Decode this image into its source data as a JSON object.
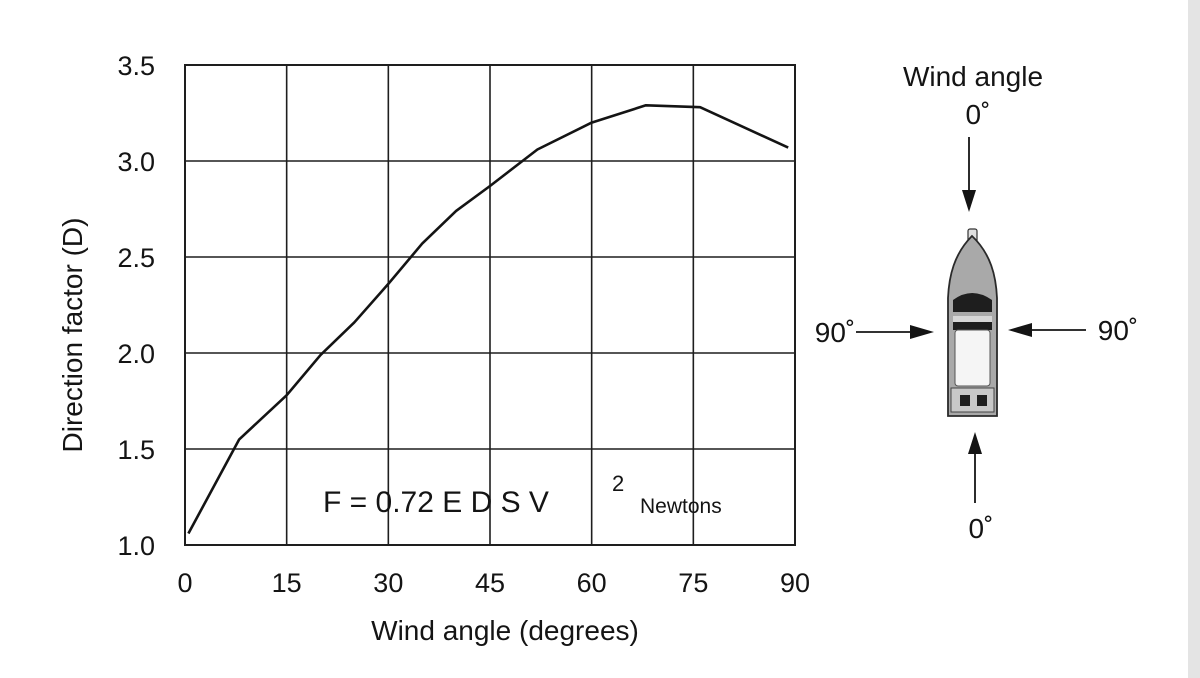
{
  "chart_data": {
    "type": "line",
    "xlabel": "Wind angle (degrees)",
    "ylabel": "Direction factor (D)",
    "xlim": [
      0,
      90
    ],
    "ylim": [
      1.0,
      3.5
    ],
    "x_ticks": [
      "0",
      "15",
      "30",
      "45",
      "60",
      "75",
      "90"
    ],
    "y_ticks": [
      "1.0",
      "1.5",
      "2.0",
      "2.5",
      "3.0",
      "3.5"
    ],
    "grid": true,
    "series": [
      {
        "x": [
          0.5,
          8,
          15,
          20,
          25,
          30,
          35,
          40,
          45,
          52,
          60,
          68,
          76,
          89
        ],
        "y": [
          1.06,
          1.55,
          1.78,
          1.99,
          2.16,
          2.36,
          2.57,
          2.74,
          2.87,
          3.06,
          3.2,
          3.29,
          3.28,
          3.07
        ]
      }
    ],
    "annotation": {
      "formula": "F = 0.72 E D S V",
      "superscript": "2",
      "unit": "Newtons"
    }
  },
  "diagram": {
    "title": "Wind angle",
    "bow_label": "0˚",
    "stern_label": "0˚",
    "port_label": "90˚",
    "starboard_label": "90˚"
  }
}
